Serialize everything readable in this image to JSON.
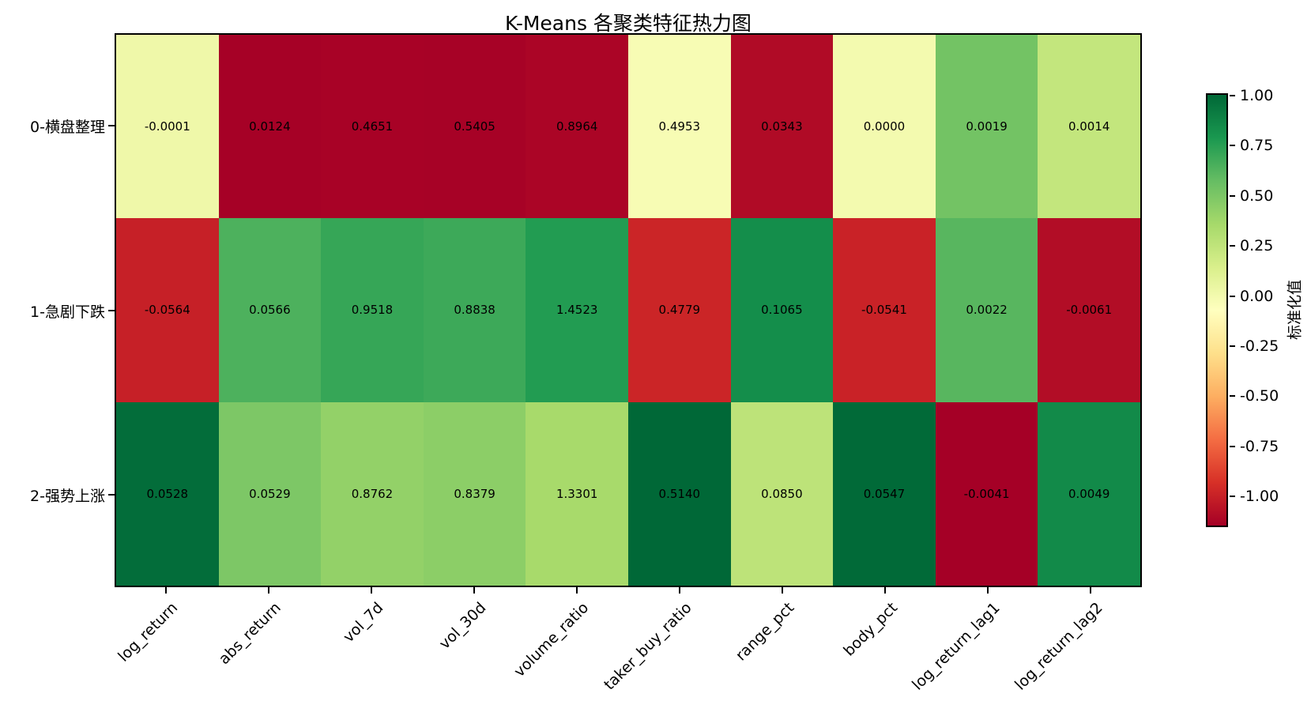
{
  "title": "K-Means 各聚类特征热力图",
  "chart_data": {
    "type": "heatmap",
    "title": "K-Means 各聚类特征热力图",
    "rows": [
      "0-横盘整理",
      "1-急剧下跌",
      "2-强势上涨"
    ],
    "columns": [
      "log_return",
      "abs_return",
      "vol_7d",
      "vol_30d",
      "volume_ratio",
      "taker_buy_ratio",
      "range_pct",
      "body_pct",
      "log_return_lag1",
      "log_return_lag2"
    ],
    "values": [
      [
        -0.0001,
        0.0124,
        0.4651,
        0.5405,
        0.8964,
        0.4953,
        0.0343,
        0.0,
        0.0019,
        0.0014
      ],
      [
        -0.0564,
        0.0566,
        0.9518,
        0.8838,
        1.4523,
        0.4779,
        0.1065,
        -0.0541,
        0.0022,
        -0.0061
      ],
      [
        0.0528,
        0.0529,
        0.8762,
        0.8379,
        1.3301,
        0.514,
        0.085,
        0.0547,
        -0.0041,
        0.0049
      ]
    ],
    "value_decimals": 4,
    "normalized_values": [
      [
        0.0208,
        -1.1514,
        -1.1426,
        -1.1459,
        -1.1291,
        -0.024,
        -1.1051,
        -0.0037,
        0.5346,
        0.2372
      ],
      [
        -1.0102,
        0.6511,
        0.7156,
        0.6961,
        0.7737,
        -0.9878,
        0.8425,
        -0.9982,
        0.619,
        -1.0973
      ],
      [
        0.9895,
        0.5002,
        0.427,
        0.4498,
        0.3554,
        1.0118,
        0.2626,
        1.0018,
        -1.1537,
        0.86
      ]
    ],
    "colormap": {
      "name": "RdYlGn",
      "anchors": [
        "#a50026",
        "#d73027",
        "#f46d43",
        "#fdae61",
        "#fee08b",
        "#ffffbf",
        "#d9ef8b",
        "#a6d96a",
        "#66bd63",
        "#1a9850",
        "#006837"
      ]
    },
    "colorbar": {
      "label": "标准化值",
      "tick_values": [
        1.0,
        0.75,
        0.5,
        0.25,
        0.0,
        -0.25,
        -0.5,
        -0.75,
        -1.0
      ],
      "tick_labels": [
        "1.00",
        "0.75",
        "0.50",
        "0.25",
        "0.00",
        "-0.25",
        "-0.50",
        "-0.75",
        "-1.00"
      ]
    },
    "legend_position": "right-colorbar",
    "grid": false
  }
}
